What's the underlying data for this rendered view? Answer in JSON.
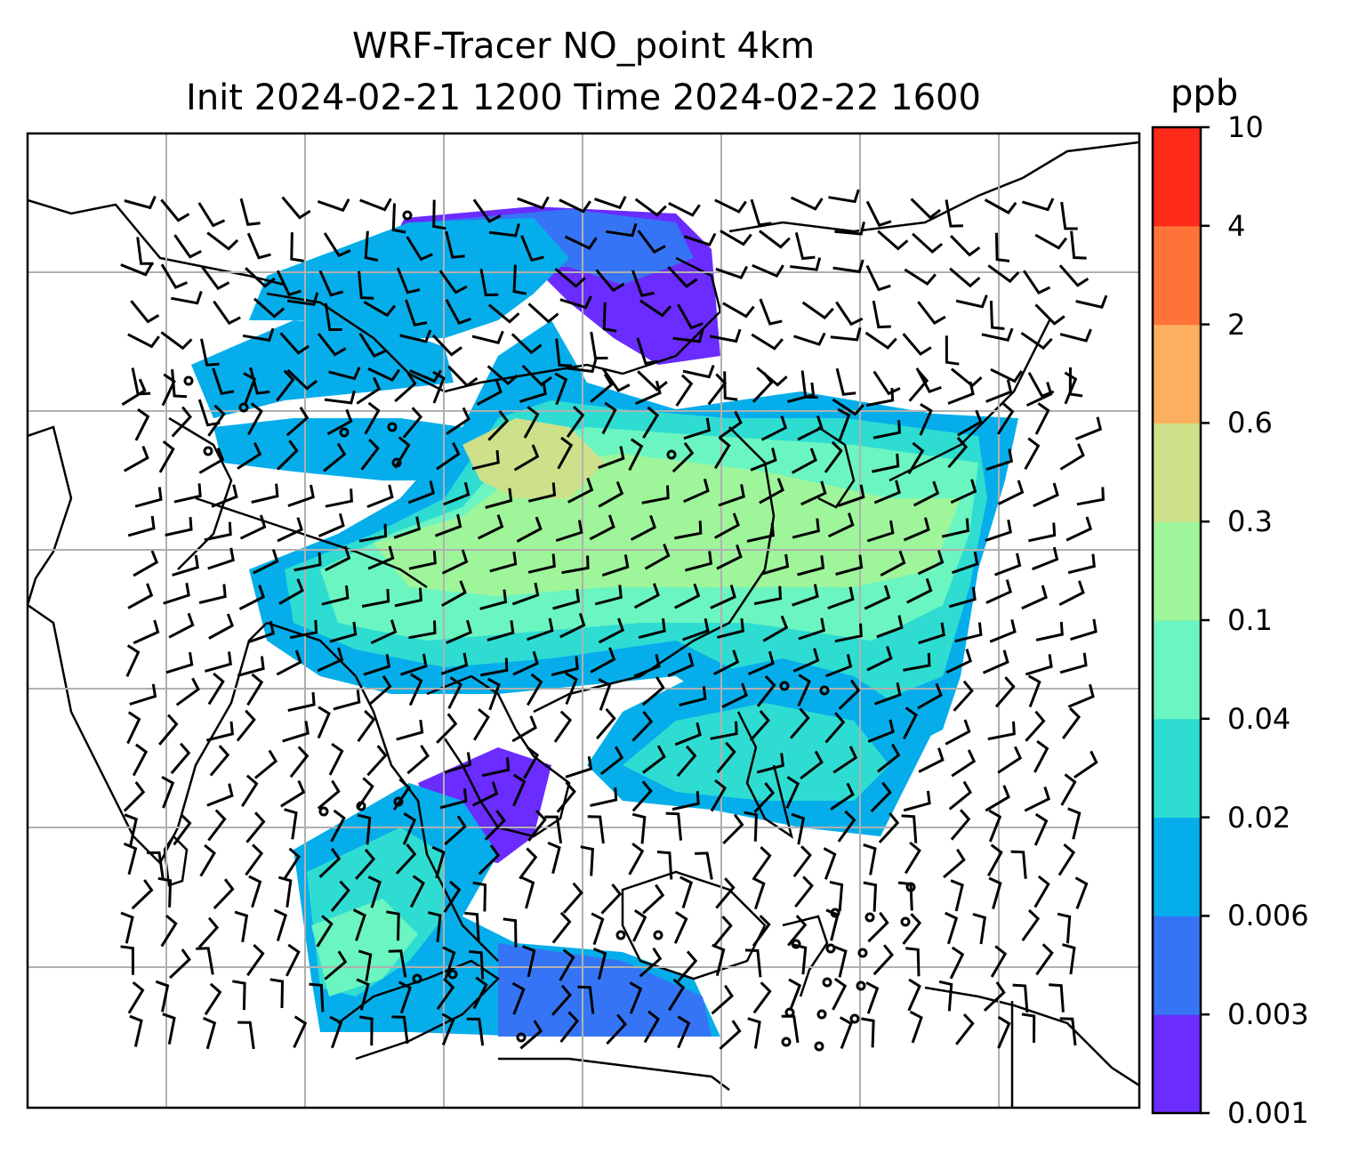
{
  "title": {
    "line1": "WRF-Tracer NO_point 4km",
    "line2": "Init 2024-02-21 1200 Time 2024-02-22 1600"
  },
  "colorbar": {
    "unit": "ppb",
    "levels": [
      "0.001",
      "0.003",
      "0.006",
      "0.02",
      "0.04",
      "0.1",
      "0.3",
      "0.6",
      "2",
      "4",
      "10"
    ],
    "colors": [
      "#6a2cff",
      "#3575f5",
      "#05aeea",
      "#2fdcd2",
      "#6bf5c1",
      "#9ff59a",
      "#cfe08a",
      "#fcaf5e",
      "#ff7238",
      "#ff2a1a"
    ]
  },
  "map": {
    "gridlines": true,
    "features": [
      "coastlines",
      "country-borders",
      "wind-barbs",
      "tracer-concentration"
    ]
  }
}
